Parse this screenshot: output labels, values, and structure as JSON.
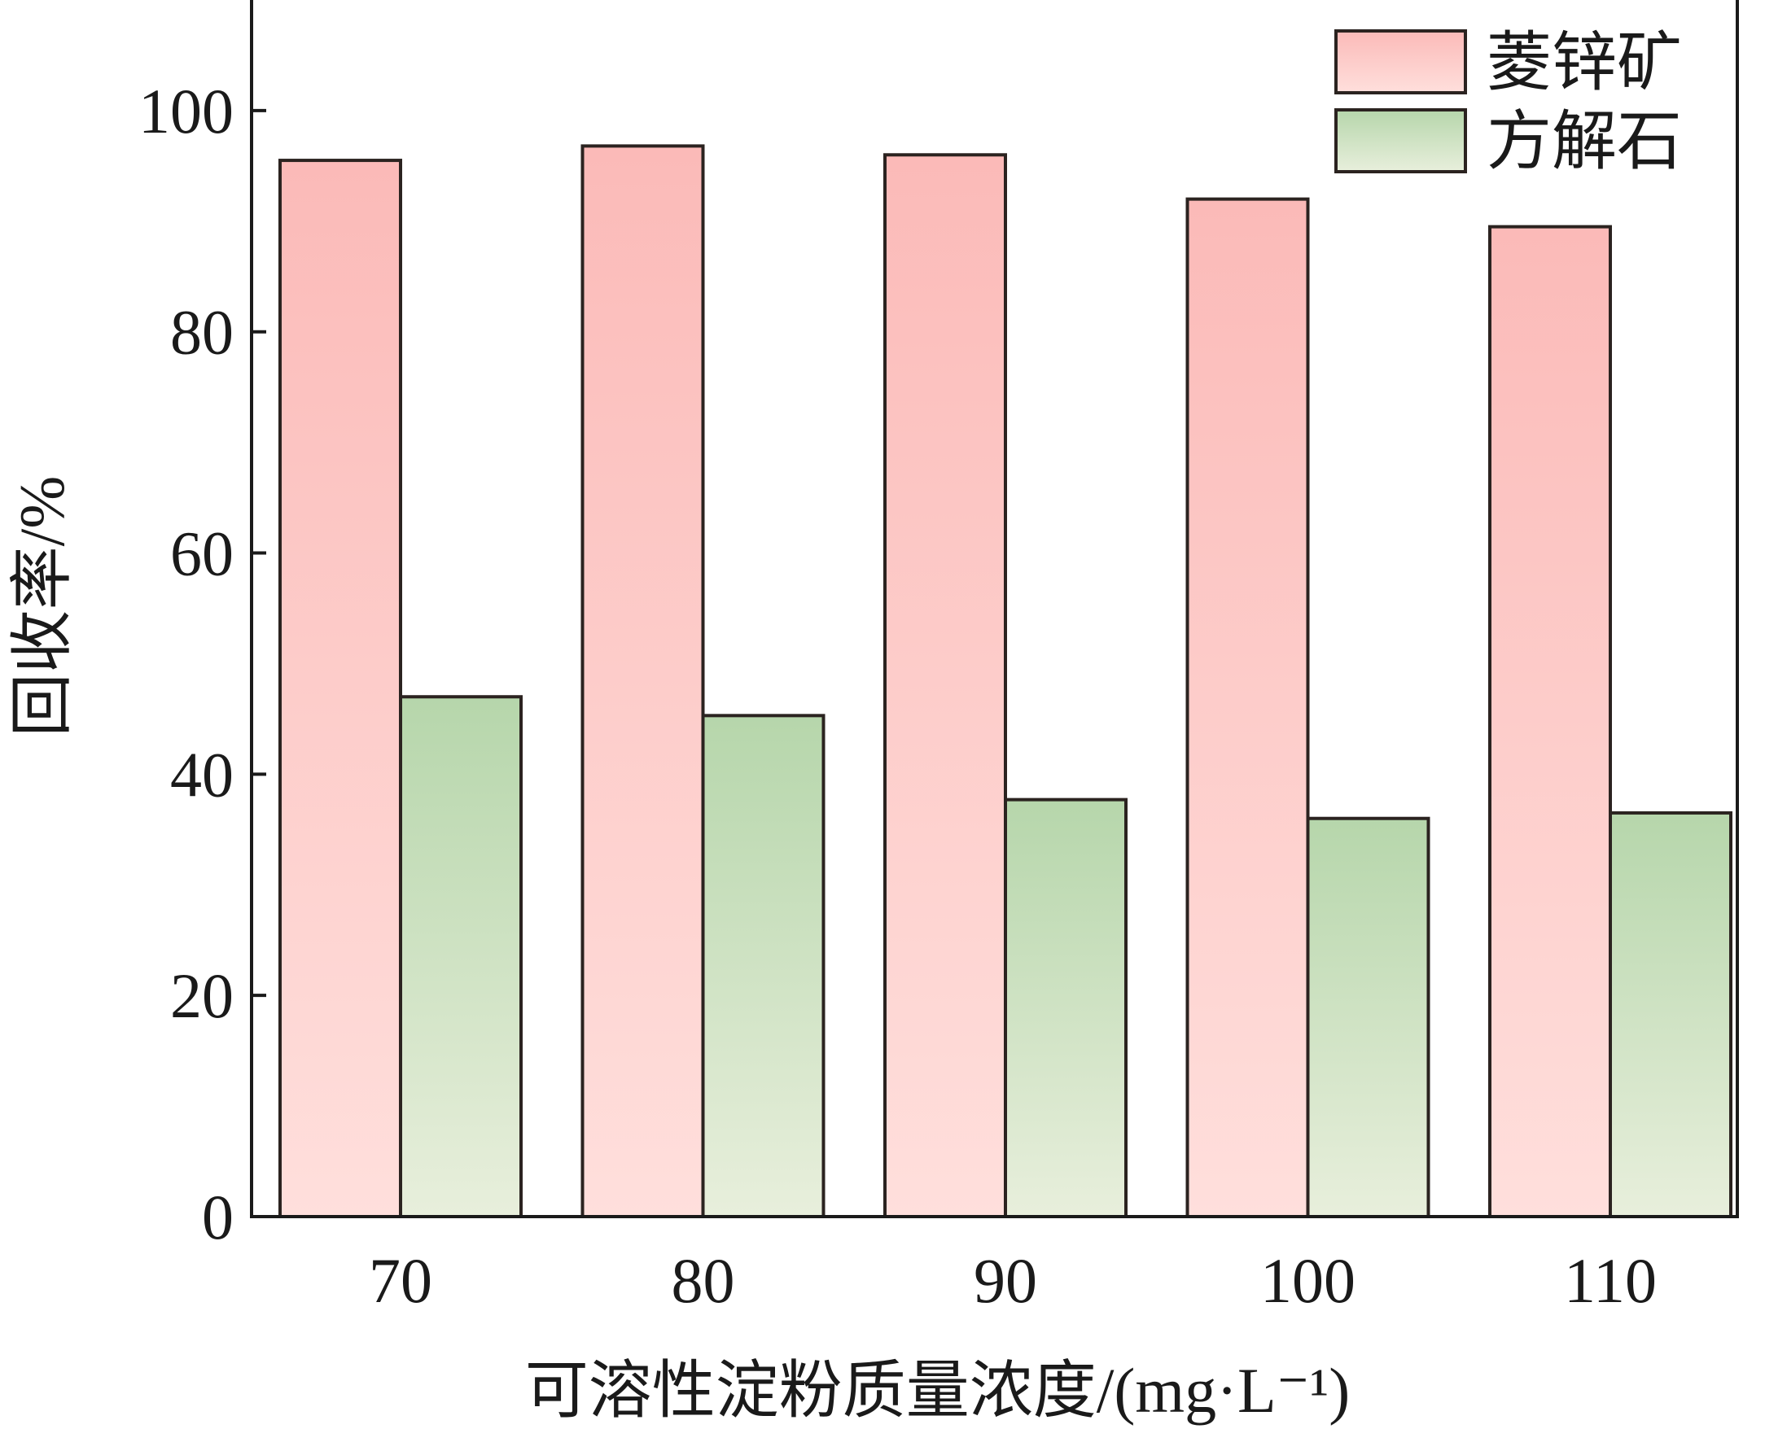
{
  "chart_data": {
    "type": "bar",
    "title": "",
    "xlabel": "可溶性淀粉质量浓度/(mg·L⁻¹)",
    "ylabel": "回收率/%",
    "categories": [
      "70",
      "80",
      "90",
      "100",
      "110"
    ],
    "ylim": [
      0,
      110
    ],
    "yticks": [
      "0",
      "20",
      "40",
      "60",
      "80",
      "100"
    ],
    "grid": false,
    "legend_position": "top-right",
    "series": [
      {
        "name": "菱锌矿",
        "values": [
          95.5,
          96.8,
          96.0,
          92.0,
          89.5
        ],
        "color": "#f9c1bf"
      },
      {
        "name": "方解石",
        "values": [
          47.0,
          45.3,
          37.7,
          36.0,
          36.5
        ],
        "color": "#c2dcba"
      }
    ]
  }
}
